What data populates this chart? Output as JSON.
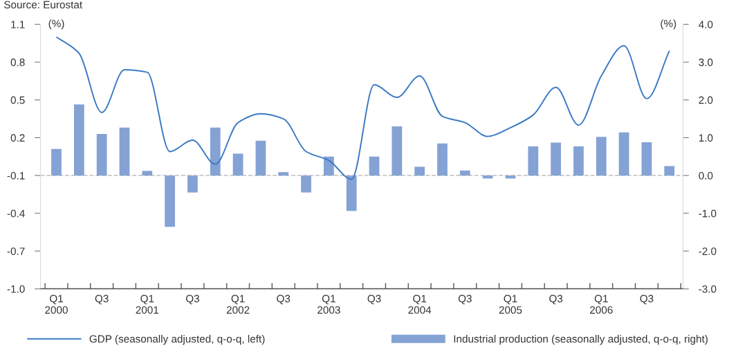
{
  "chart_data": {
    "type": "bar",
    "annotations": [
      "Source: Eurostat"
    ],
    "ylabel": "(%)",
    "y2label": "(%)",
    "categories": [
      "Q1\n2000",
      null,
      "Q3",
      null,
      "Q1\n2001",
      null,
      "Q3",
      null,
      "Q1\n2002",
      null,
      "Q3",
      null,
      "Q1\n2003",
      null,
      "Q3",
      null,
      "Q1\n2004",
      null,
      "Q3",
      null,
      "Q1\n2005",
      null,
      "Q3",
      null,
      "Q1\n2006",
      null,
      "Q3",
      null
    ],
    "series": [
      {
        "name": "GDP (seasonally adjusted, q-o-q, left)",
        "type": "line",
        "color": "#3a7ac4",
        "axis": "y",
        "values": [
          1.0,
          0.87,
          0.4,
          0.74,
          0.72,
          0.09,
          0.18,
          -0.01,
          0.32,
          0.39,
          0.35,
          0.09,
          0.02,
          -0.13,
          0.62,
          0.52,
          0.69,
          0.37,
          0.32,
          0.21,
          0.28,
          0.38,
          0.6,
          0.3,
          0.69,
          0.93,
          0.51,
          0.89
        ]
      },
      {
        "name": "Industrial production (seasonally adjusted, q-o-q, right)",
        "color": "#84a2d4",
        "axis": "y2",
        "values": [
          0.7,
          1.88,
          1.1,
          1.27,
          0.12,
          -1.36,
          -0.45,
          1.27,
          0.58,
          0.92,
          0.09,
          -0.45,
          0.5,
          -0.94,
          0.5,
          1.3,
          0.23,
          0.85,
          0.13,
          -0.08,
          -0.08,
          0.77,
          0.87,
          0.77,
          1.02,
          1.14,
          0.88,
          0.25
        ]
      }
    ],
    "ylim": [
      -1.0,
      1.1
    ],
    "yticks": [
      1.1,
      0.8,
      0.5,
      0.2,
      -0.1,
      -0.4,
      -0.7,
      {
        "value": -1,
        "label": "-1.0"
      }
    ],
    "y2lim": [
      -3.0,
      4.0
    ],
    "y2ticks": [
      {
        "value": 4,
        "label": "4.0"
      },
      {
        "value": 3,
        "label": "3.0"
      },
      {
        "value": 2,
        "label": "2.0"
      },
      {
        "value": 1,
        "label": "1.0"
      },
      {
        "value": 0,
        "label": "0.0"
      },
      {
        "value": -1,
        "label": "-1.0"
      },
      {
        "value": -2,
        "label": "-2.0"
      },
      {
        "value": -3,
        "label": "-3.0"
      }
    ],
    "ref_lines": [
      {
        "axis": "y2",
        "value": 0,
        "color": "#c8c8c8",
        "line_style": "dashed"
      }
    ],
    "grid": false,
    "legend": "bottom"
  }
}
